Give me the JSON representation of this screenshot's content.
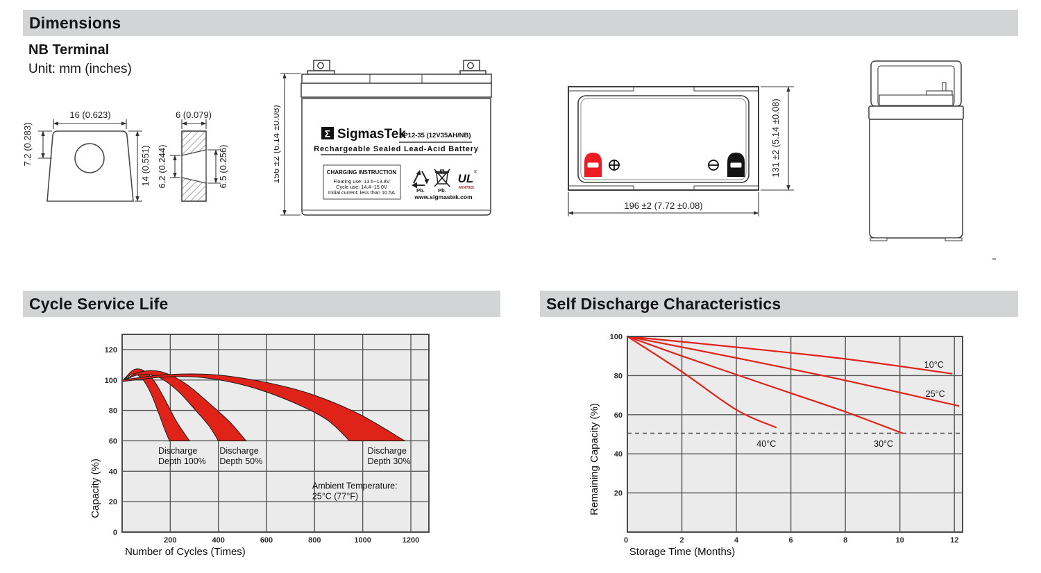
{
  "page": {
    "bg": "#ffffff"
  },
  "colors": {
    "section_bar": "#d3d4d6",
    "red": "#e02318",
    "terminal_red": "#ed1c24",
    "grid": "#58585a",
    "plot_bg": "#ebebeb"
  },
  "sections": {
    "dimensions": "Dimensions",
    "cycle": "Cycle Service Life",
    "self_discharge": "Self Discharge Characteristics"
  },
  "terminal": {
    "heading": "NB Terminal",
    "unit": "Unit: mm (inches)",
    "front": {
      "width": "16 (0.623)",
      "slot": "7.2 (0.283)",
      "height": "14 (0.551)"
    },
    "side": {
      "width": "6 (0.079)",
      "left": "6.2 (0.244)",
      "right": "6.5 (0.256)"
    }
  },
  "battery_front": {
    "height_dim": "156 ±2 (6.14 ±0.08)",
    "label": {
      "sigma": "Σ",
      "brand": "SigmasTek",
      "model": "SP12-35 (12V35AH/NB)",
      "subtitle": "Rechargeable Sealed Lead-Acid Battery",
      "charging_title": "CHARGING INSTRUCTION",
      "charging_lines": [
        "Floating use: 13.5~13.8V",
        "Cycle use: 14.4~15.0V",
        "Initial current: less than 10.5A"
      ],
      "pb_recycle": "Pb.",
      "pb_trash": "Pb.",
      "ul_mark": "UL",
      "ul_number": "MH47929",
      "website": "www.sigmastek.com"
    }
  },
  "battery_top": {
    "depth_dim": "131 ±2 (5.14 ±0.08)",
    "width_dim": "196 ±2 (7.72 ±0.08)"
  },
  "chart_data": [
    {
      "type": "area",
      "title": "Cycle Service Life",
      "xlabel": "Number of Cycles (Times)",
      "ylabel": "Capacity (%)",
      "xlim": [
        0,
        1275
      ],
      "ylim": [
        0,
        130
      ],
      "grid": true,
      "legend": "none",
      "plot_bg": "#ebebeb",
      "band_color": "#e02318",
      "xticks": [
        200,
        400,
        600,
        800,
        1000,
        1200
      ],
      "yticks_grid": [
        20,
        40,
        60,
        80,
        100,
        120
      ],
      "ytick_labels": [
        0,
        20,
        40,
        60,
        80,
        100,
        120
      ],
      "bands": [
        {
          "label": [
            "Discharge",
            "Depth 100%"
          ],
          "label_pos": [
            150,
            57
          ],
          "upper": [
            [
              0,
              99
            ],
            [
              45,
              106.5
            ],
            [
              85,
              106.5
            ],
            [
              130,
              100
            ],
            [
              175,
              88
            ],
            [
              225,
              73
            ],
            [
              280,
              60
            ]
          ],
          "lower": [
            [
              0,
              99
            ],
            [
              45,
              104
            ],
            [
              85,
              100.5
            ],
            [
              120,
              91
            ],
            [
              150,
              79
            ],
            [
              178,
              67
            ],
            [
              197,
              60
            ]
          ]
        },
        {
          "label": [
            "Discharge",
            "Depth 50%"
          ],
          "label_pos": [
            405,
            57
          ],
          "upper": [
            [
              0,
              99
            ],
            [
              70,
              105
            ],
            [
              160,
              105.5
            ],
            [
              260,
              98
            ],
            [
              360,
              85
            ],
            [
              450,
              72
            ],
            [
              515,
              60
            ]
          ],
          "lower": [
            [
              0,
              99
            ],
            [
              70,
              103.5
            ],
            [
              150,
              102
            ],
            [
              230,
              93
            ],
            [
              300,
              81
            ],
            [
              360,
              70
            ],
            [
              400,
              60
            ]
          ]
        },
        {
          "label": [
            "Discharge",
            "Depth 30%"
          ],
          "label_pos": [
            1020,
            57
          ],
          "upper": [
            [
              0,
              100
            ],
            [
              180,
              103.5
            ],
            [
              380,
              103.5
            ],
            [
              580,
              99
            ],
            [
              780,
              91
            ],
            [
              980,
              78
            ],
            [
              1175,
              60
            ]
          ],
          "lower": [
            [
              0,
              99
            ],
            [
              180,
              102
            ],
            [
              340,
              101.5
            ],
            [
              520,
              96
            ],
            [
              700,
              86
            ],
            [
              850,
              74
            ],
            [
              945,
              60
            ]
          ]
        }
      ],
      "annotations": [
        {
          "lines": [
            "Ambient Temperature:",
            "25°C (77°F)"
          ],
          "pos": [
            790,
            34
          ]
        }
      ]
    },
    {
      "type": "line",
      "title": "Self Discharge Characteristics",
      "xlabel": "Storage Time (Months)",
      "ylabel": "Remaining Capacity (%)",
      "xlim": [
        0,
        12.3
      ],
      "ylim": [
        0,
        100
      ],
      "grid": true,
      "legend": "inline-labels",
      "plot_bg": "#ebebeb",
      "line_color": "#e02318",
      "xticks": [
        2,
        4,
        6,
        8,
        10,
        12
      ],
      "origin_label": "0",
      "yticks_grid": [
        20,
        40,
        60,
        80
      ],
      "ytick_labels": [
        20,
        40,
        60,
        80,
        100
      ],
      "dashed_y": 50.5,
      "series": [
        {
          "name": "10°C",
          "points": [
            [
              0,
              100
            ],
            [
              4,
              94.5
            ],
            [
              8,
              88.5
            ],
            [
              11.9,
              81
            ]
          ],
          "label_pos": [
            11.25,
            85.5
          ]
        },
        {
          "name": "25°C",
          "points": [
            [
              0,
              100
            ],
            [
              4,
              89
            ],
            [
              8,
              77.5
            ],
            [
              12.15,
              64.5
            ]
          ],
          "label_pos": [
            11.3,
            70.5
          ]
        },
        {
          "name": "30°C",
          "points": [
            [
              0,
              100
            ],
            [
              2,
              90
            ],
            [
              4,
              80.5
            ],
            [
              6,
              71
            ],
            [
              8,
              61.5
            ],
            [
              10.1,
              50.5
            ]
          ],
          "label_pos": [
            9.4,
            45
          ]
        },
        {
          "name": "40°C",
          "points": [
            [
              0,
              100
            ],
            [
              2,
              82
            ],
            [
              4,
              62.5
            ],
            [
              5.45,
              53.5
            ]
          ],
          "label_pos": [
            5.1,
            45
          ]
        }
      ]
    }
  ]
}
